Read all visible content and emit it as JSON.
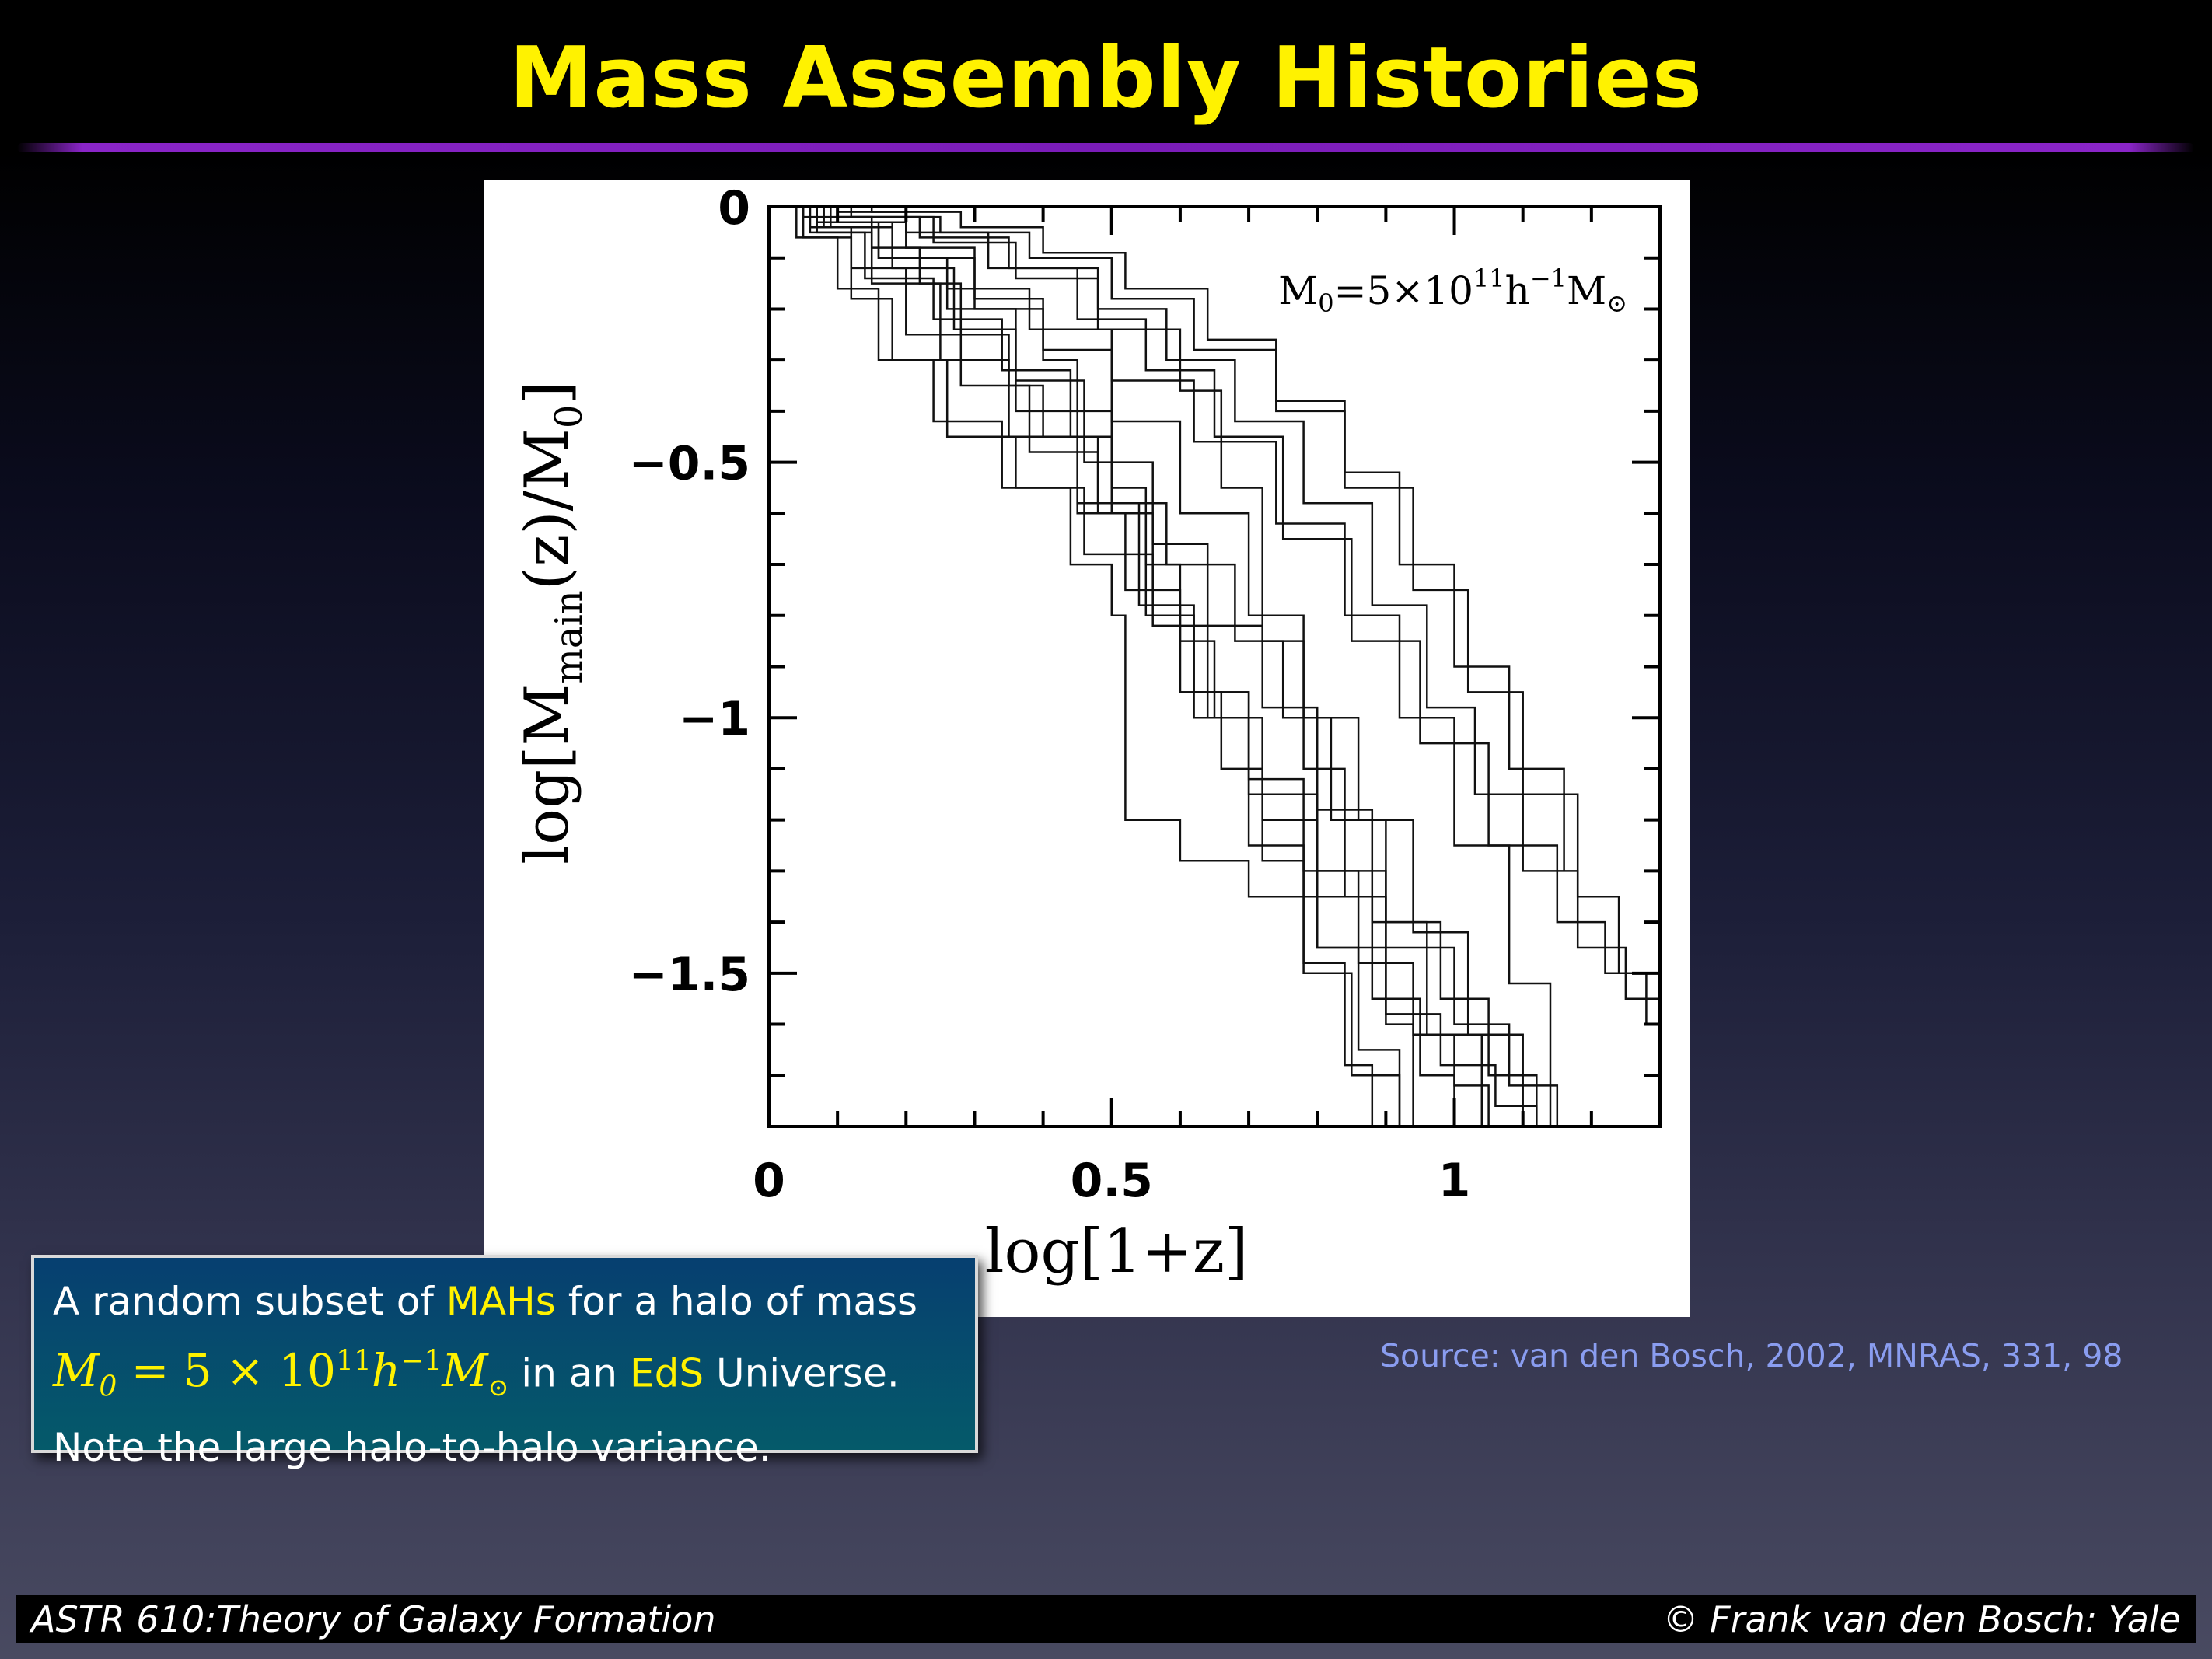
{
  "slide": {
    "title": "Mass Assembly Histories",
    "source": "Source: van den Bosch, 2002, MNRAS, 331, 98",
    "footer_left": "ASTR 610:Theory of Galaxy Formation",
    "footer_right": "© Frank van den Bosch: Yale"
  },
  "caption": {
    "line1_pre": "A random subset of ",
    "line1_hl": "MAHs",
    "line1_post": " for a halo of mass",
    "math_base": "M",
    "math_sub0": "0",
    "math_eq": " = 5 × 10",
    "math_exp1": "11",
    "math_h": "h",
    "math_exp2": "−1",
    "math_m": "M",
    "math_sun": "⊙",
    "line2_pre": " in an ",
    "line2_hl": "EdS",
    "line2_post": " Universe.",
    "line3": "Note the large halo-to-halo variance."
  },
  "colors": {
    "title": "#fff200",
    "highlight": "#fff200",
    "rule": "#7a1cb8",
    "caption_bg": "#055a6a",
    "source": "#8a9df0"
  },
  "chart_data": {
    "type": "line",
    "xlabel": "log[1+z]",
    "ylabel": "log[M_main(z)/M_0]",
    "annotation": "M0=5×10^11 h^-1 M⊙",
    "xlim": [
      0,
      1.3
    ],
    "ylim": [
      -1.8,
      0
    ],
    "x_ticks": [
      0,
      0.5,
      1
    ],
    "x_tick_labels": [
      "0",
      "0.5",
      "1"
    ],
    "y_ticks": [
      0,
      -0.5,
      -1,
      -1.5
    ],
    "y_tick_labels": [
      "0",
      "−0.5",
      "−1",
      "−1.5"
    ],
    "series": [
      {
        "x": [
          0,
          0.05,
          0.15,
          0.22,
          0.28,
          0.35,
          0.4,
          0.48,
          0.55,
          0.62,
          0.7,
          0.78,
          0.85,
          0.92
        ],
        "y": [
          0,
          -0.02,
          -0.08,
          -0.15,
          -0.25,
          -0.35,
          -0.45,
          -0.6,
          -0.8,
          -1.0,
          -1.25,
          -1.5,
          -1.7,
          -1.8
        ]
      },
      {
        "x": [
          0,
          0.08,
          0.18,
          0.3,
          0.4,
          0.45,
          0.5,
          0.55,
          0.6,
          0.65,
          0.72,
          0.8,
          0.9,
          1.0,
          1.08,
          1.15
        ],
        "y": [
          0,
          -0.03,
          -0.1,
          -0.2,
          -0.3,
          -0.4,
          -0.55,
          -0.7,
          -0.85,
          -1.0,
          -1.15,
          -1.3,
          -1.45,
          -1.6,
          -1.72,
          -1.8
        ]
      },
      {
        "x": [
          0,
          0.1,
          0.2,
          0.32,
          0.45,
          0.55,
          0.65,
          0.75,
          0.85,
          0.95,
          1.05,
          1.15,
          1.22,
          1.28
        ],
        "y": [
          0,
          -0.01,
          -0.05,
          -0.12,
          -0.22,
          -0.32,
          -0.45,
          -0.65,
          -0.85,
          -1.05,
          -1.25,
          -1.4,
          -1.5,
          -1.6
        ]
      },
      {
        "x": [
          0,
          0.06,
          0.12,
          0.2,
          0.28,
          0.38,
          0.48,
          0.58,
          0.68,
          0.75,
          0.82,
          0.9,
          0.98,
          1.05,
          1.12
        ],
        "y": [
          0,
          -0.04,
          -0.12,
          -0.25,
          -0.35,
          -0.48,
          -0.58,
          -0.7,
          -0.85,
          -1.0,
          -1.2,
          -1.4,
          -1.55,
          -1.7,
          -1.8
        ]
      },
      {
        "x": [
          0,
          0.07,
          0.15,
          0.25,
          0.35,
          0.45,
          0.52,
          0.6,
          0.7,
          0.8,
          0.88,
          0.95,
          1.0
        ],
        "y": [
          0,
          -0.05,
          -0.15,
          -0.3,
          -0.45,
          -0.6,
          -0.75,
          -0.95,
          -1.15,
          -1.35,
          -1.55,
          -1.7,
          -1.8
        ]
      },
      {
        "x": [
          0,
          0.1,
          0.22,
          0.35,
          0.48,
          0.58,
          0.68,
          0.78,
          0.88,
          0.96,
          1.03,
          1.1,
          1.18,
          1.25,
          1.3
        ],
        "y": [
          0,
          -0.02,
          -0.06,
          -0.12,
          -0.2,
          -0.3,
          -0.42,
          -0.58,
          -0.78,
          -0.98,
          -1.15,
          -1.3,
          -1.45,
          -1.55,
          -1.62
        ]
      },
      {
        "x": [
          0,
          0.05,
          0.12,
          0.18,
          0.26,
          0.36,
          0.46,
          0.56,
          0.64,
          0.72,
          0.8,
          0.86,
          0.92
        ],
        "y": [
          0,
          -0.06,
          -0.18,
          -0.3,
          -0.45,
          -0.55,
          -0.68,
          -0.82,
          -1.0,
          -1.2,
          -1.45,
          -1.65,
          -1.8
        ]
      },
      {
        "x": [
          0,
          0.08,
          0.2,
          0.3,
          0.4,
          0.5,
          0.6,
          0.7,
          0.78,
          0.86,
          0.94,
          1.02,
          1.1
        ],
        "y": [
          0,
          -0.03,
          -0.08,
          -0.18,
          -0.28,
          -0.42,
          -0.6,
          -0.8,
          -1.0,
          -1.2,
          -1.42,
          -1.62,
          -1.8
        ]
      },
      {
        "x": [
          0,
          0.12,
          0.25,
          0.38,
          0.5,
          0.62,
          0.74,
          0.84,
          0.94,
          1.02,
          1.1,
          1.18,
          1.24
        ],
        "y": [
          0,
          -0.02,
          -0.05,
          -0.1,
          -0.18,
          -0.28,
          -0.4,
          -0.55,
          -0.75,
          -0.95,
          -1.15,
          -1.35,
          -1.5
        ]
      },
      {
        "x": [
          0,
          0.06,
          0.14,
          0.24,
          0.34,
          0.44,
          0.5,
          0.56,
          0.62,
          0.7,
          0.78,
          0.86,
          0.94,
          1.0,
          1.05
        ],
        "y": [
          0,
          -0.05,
          -0.14,
          -0.22,
          -0.32,
          -0.45,
          -0.6,
          -0.78,
          -0.95,
          -1.12,
          -1.3,
          -1.48,
          -1.62,
          -1.72,
          -1.8
        ]
      },
      {
        "x": [
          0,
          0.09,
          0.18,
          0.27,
          0.36,
          0.45,
          0.54,
          0.6,
          0.66,
          0.72,
          0.78,
          0.84,
          0.88
        ],
        "y": [
          0,
          -0.04,
          -0.12,
          -0.24,
          -0.4,
          -0.58,
          -0.78,
          -0.95,
          -1.1,
          -1.28,
          -1.48,
          -1.68,
          -1.8
        ]
      },
      {
        "x": [
          0,
          0.15,
          0.28,
          0.4,
          0.52,
          0.64,
          0.74,
          0.84,
          0.92,
          1.0,
          1.08,
          1.16
        ],
        "y": [
          0,
          -0.01,
          -0.04,
          -0.09,
          -0.16,
          -0.26,
          -0.38,
          -0.52,
          -0.7,
          -0.9,
          -1.1,
          -1.3
        ]
      },
      {
        "x": [
          0,
          0.04,
          0.1,
          0.16,
          0.24,
          0.34,
          0.44,
          0.5,
          0.52,
          0.6,
          0.7,
          0.8,
          0.9,
          0.98,
          1.06,
          1.12
        ],
        "y": [
          0,
          -0.06,
          -0.16,
          -0.3,
          -0.42,
          -0.55,
          -0.7,
          -0.8,
          -1.2,
          -1.28,
          -1.35,
          -1.45,
          -1.58,
          -1.68,
          -1.76,
          -1.8
        ]
      },
      {
        "x": [
          0,
          0.07,
          0.16,
          0.26,
          0.36,
          0.46,
          0.56,
          0.64,
          0.72,
          0.8,
          0.88,
          0.96,
          1.04
        ],
        "y": [
          0,
          -0.03,
          -0.1,
          -0.2,
          -0.34,
          -0.5,
          -0.66,
          -0.82,
          -0.98,
          -1.18,
          -1.4,
          -1.62,
          -1.8
        ]
      },
      {
        "x": [
          0,
          0.1,
          0.24,
          0.36,
          0.48,
          0.6,
          0.66,
          0.72,
          0.78,
          0.84,
          0.9,
          0.94
        ],
        "y": [
          0,
          -0.02,
          -0.07,
          -0.14,
          -0.24,
          -0.36,
          -0.55,
          -0.85,
          -1.1,
          -1.35,
          -1.6,
          -1.8
        ]
      },
      {
        "x": [
          0,
          0.08,
          0.16,
          0.26,
          0.38,
          0.5,
          0.62,
          0.74,
          0.84,
          0.92,
          1.0,
          1.08,
          1.14
        ],
        "y": [
          0,
          -0.04,
          -0.1,
          -0.16,
          -0.24,
          -0.34,
          -0.46,
          -0.62,
          -0.8,
          -1.0,
          -1.25,
          -1.52,
          -1.8
        ]
      }
    ]
  }
}
